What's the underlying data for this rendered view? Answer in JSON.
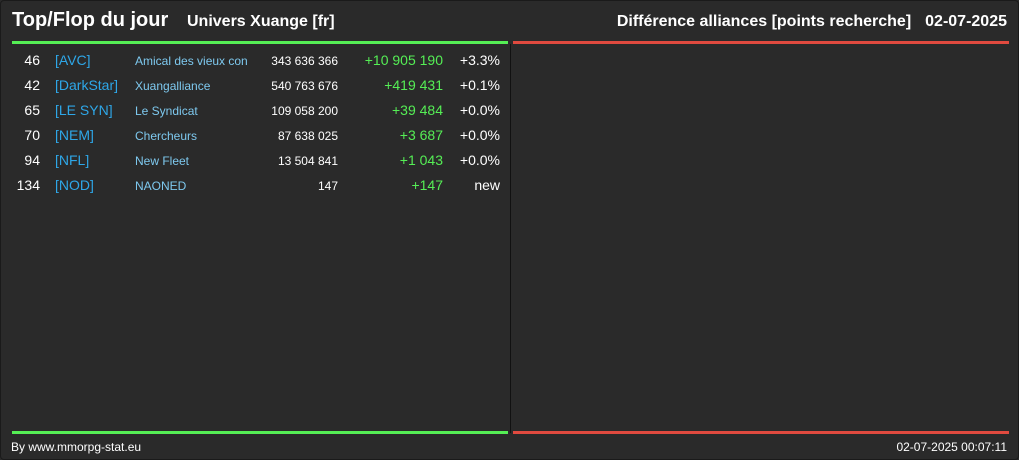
{
  "header": {
    "title": "Top/Flop du jour",
    "subtitle": "Univers Xuange [fr]",
    "category": "Différence alliances [points recherche]",
    "date": "02-07-2025"
  },
  "colors": {
    "top_line": "#55ee55",
    "flop_line": "#e04a3f",
    "tag": "#2ea7e8",
    "name": "#7ec9ef",
    "gain": "#55ee55"
  },
  "top": [
    {
      "rank": "46",
      "tag": "[AVC]",
      "name": "Amical des vieux con",
      "points": "343 636 366",
      "diff": "+10 905 190",
      "pct": "+3.3%"
    },
    {
      "rank": "42",
      "tag": "[DarkStar]",
      "name": "Xuangalliance",
      "points": "540 763 676",
      "diff": "+419 431",
      "pct": "+0.1%"
    },
    {
      "rank": "65",
      "tag": "[LE SYN]",
      "name": "Le Syndicat",
      "points": "109 058 200",
      "diff": "+39 484",
      "pct": "+0.0%"
    },
    {
      "rank": "70",
      "tag": "[NEM]",
      "name": "Chercheurs",
      "points": "87 638 025",
      "diff": "+3 687",
      "pct": "+0.0%"
    },
    {
      "rank": "94",
      "tag": "[NFL]",
      "name": "New Fleet",
      "points": "13 504 841",
      "diff": "+1 043",
      "pct": "+0.0%"
    },
    {
      "rank": "134",
      "tag": "[NOD]",
      "name": "NAONED",
      "points": "147",
      "diff": "+147",
      "pct": "new"
    }
  ],
  "footer": {
    "credit": "By www.mmorpg-stat.eu",
    "timestamp": "02-07-2025 00:07:11"
  }
}
